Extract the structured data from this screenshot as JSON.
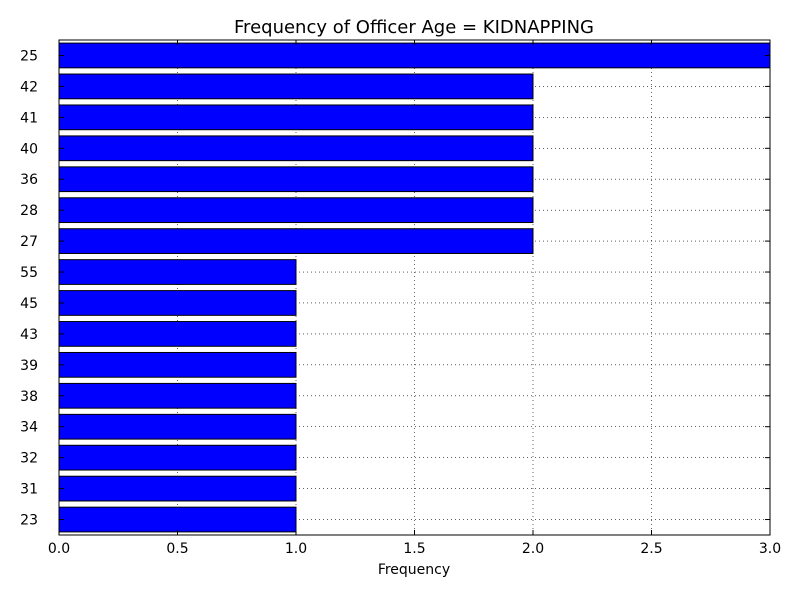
{
  "chart_data": {
    "type": "bar",
    "orientation": "horizontal",
    "title": "Frequency of Officer Age = KIDNAPPING",
    "xlabel": "Frequency",
    "ylabel": "",
    "categories": [
      "25",
      "42",
      "41",
      "40",
      "36",
      "28",
      "27",
      "55",
      "45",
      "43",
      "39",
      "38",
      "34",
      "32",
      "31",
      "23"
    ],
    "values": [
      3,
      2,
      2,
      2,
      2,
      2,
      2,
      1,
      1,
      1,
      1,
      1,
      1,
      1,
      1,
      1
    ],
    "xlim": [
      0,
      3
    ],
    "xticks": [
      "0.0",
      "0.5",
      "1.0",
      "1.5",
      "2.0",
      "2.5",
      "3.0"
    ],
    "grid": true,
    "bar_color": "#0000ff",
    "edge_color": "#000000"
  }
}
